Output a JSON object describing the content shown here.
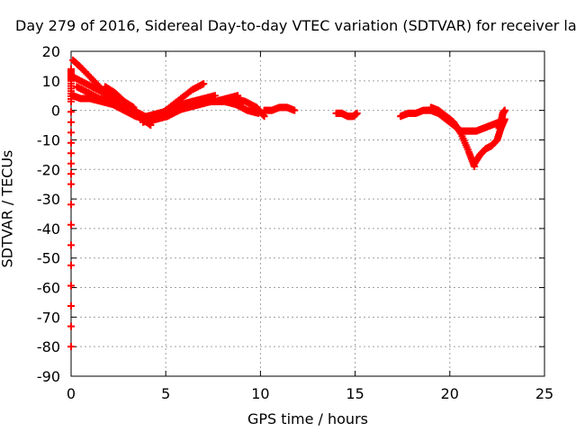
{
  "chart_data": {
    "type": "scatter",
    "title": "Day 279 of 2016, Sidereal Day-to-day VTEC variation (SDTVAR) for receiver la",
    "xlabel": "GPS time / hours",
    "ylabel": "SDTVAR / TECUs",
    "xlim": [
      0,
      25
    ],
    "ylim": [
      -90,
      20
    ],
    "xticks": [
      "0",
      "5",
      "10",
      "15",
      "20",
      "25"
    ],
    "yticks": [
      "20",
      "10",
      "0",
      "-10",
      "-20",
      "-30",
      "-40",
      "-50",
      "-60",
      "-70",
      "-80",
      "-90"
    ],
    "grid": true,
    "marker_color": "#ff0000",
    "series": [
      {
        "x": [
          0.1,
          0.6,
          1.2,
          1.8,
          2.4,
          3.0,
          3.5,
          4.0,
          4.5,
          5.2,
          5.8,
          6.4,
          7.0,
          7.6
        ],
        "y": [
          17,
          14,
          10,
          6,
          2,
          0,
          -2,
          -4,
          -3,
          -1,
          1,
          3,
          4,
          5
        ]
      },
      {
        "x": [
          0.2,
          0.8,
          1.4,
          2.0,
          2.6,
          3.2,
          3.8,
          4.2
        ],
        "y": [
          11,
          9,
          7,
          5,
          3,
          0,
          -3,
          -5
        ]
      },
      {
        "x": [
          0.1,
          0.5,
          1.0,
          1.6,
          2.2,
          2.8,
          3.4,
          4.0,
          4.6,
          5.2,
          5.8,
          6.4,
          7.0
        ],
        "y": [
          5,
          4,
          4,
          3,
          2,
          0,
          -2,
          -3,
          -2,
          1,
          4,
          7,
          9
        ]
      },
      {
        "x": [
          0.3,
          0.9,
          1.5,
          2.1,
          2.7,
          3.3,
          3.9,
          4.5,
          5.1,
          5.7,
          6.3,
          6.9,
          7.5,
          8.1,
          8.7,
          9.3,
          9.9
        ],
        "y": [
          8,
          6,
          4,
          3,
          2,
          0,
          -2,
          -3,
          -2,
          0,
          2,
          3,
          3,
          3,
          2,
          0,
          -1
        ]
      },
      {
        "x": [
          1.8,
          2.3,
          2.8,
          3.3
        ],
        "y": [
          8,
          6,
          3,
          1
        ]
      },
      {
        "x": [
          3.8,
          4.4,
          5.0,
          5.6,
          6.2,
          6.8,
          7.4,
          8.0,
          8.6,
          9.2,
          9.8,
          10.2
        ],
        "y": [
          -4,
          -3,
          -1,
          0,
          1,
          2,
          3,
          3,
          4,
          3,
          1,
          -2
        ]
      },
      {
        "x": [
          4.0,
          4.6,
          5.2,
          5.8,
          6.4,
          7.0,
          7.6,
          8.2,
          8.8
        ],
        "y": [
          -2,
          -1,
          0,
          2,
          3,
          3,
          3,
          4,
          5
        ]
      },
      {
        "x": [
          10.2,
          10.6,
          11.0,
          11.4,
          11.8
        ],
        "y": [
          0,
          0,
          1,
          1,
          0
        ]
      },
      {
        "x": [
          14.0,
          14.3,
          14.6,
          14.9,
          15.1
        ],
        "y": [
          -1,
          -1,
          -2,
          -2,
          -1
        ]
      },
      {
        "x": [
          17.4,
          17.8,
          18.2,
          18.6,
          19.0,
          19.4,
          19.8,
          20.2,
          20.6,
          21.0,
          21.4,
          21.8,
          22.2,
          22.6
        ],
        "y": [
          -2,
          -1,
          -1,
          0,
          0,
          -1,
          -3,
          -5,
          -7,
          -7,
          -7,
          -6,
          -5,
          -4
        ]
      },
      {
        "x": [
          19.0,
          19.4,
          19.8,
          20.2,
          20.6,
          21.0,
          21.3
        ],
        "y": [
          1,
          0,
          -2,
          -4,
          -8,
          -14,
          -19
        ]
      },
      {
        "x": [
          21.3,
          21.6,
          21.9,
          22.2,
          22.5,
          22.7,
          22.9
        ],
        "y": [
          -18,
          -15,
          -13,
          -12,
          -10,
          -6,
          -3
        ]
      },
      {
        "x": [
          22.6,
          22.7,
          22.8,
          22.9
        ],
        "y": [
          -6,
          -4,
          -1,
          0
        ]
      },
      {
        "x": [
          0,
          0,
          0,
          0,
          0
        ],
        "y": [
          14,
          10,
          3,
          -25,
          -80
        ]
      }
    ]
  }
}
